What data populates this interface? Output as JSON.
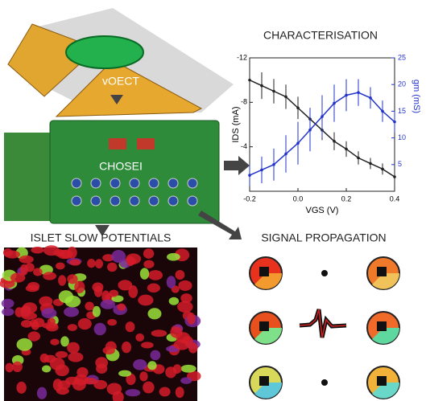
{
  "labels": {
    "device": "vOECT",
    "board": "CHOSEI",
    "islet": "ISLET SLOW POTENTIALS",
    "propagation": "SIGNAL PROPAGATION"
  },
  "chart_data": {
    "type": "line",
    "title": "CHARACTERISATION",
    "x_label": "VGS (V)",
    "y_label": "IDS (mA)",
    "y2_label": "gm (mS)",
    "x": [
      -0.2,
      -0.15,
      -0.1,
      -0.05,
      0.0,
      0.05,
      0.1,
      0.15,
      0.2,
      0.25,
      0.3,
      0.35,
      0.4
    ],
    "xlim": [
      -0.2,
      0.4
    ],
    "xticks": [
      -0.2,
      {
        "value": 0,
        "label": "0.0"
      },
      0.2,
      0.4
    ],
    "ylim": [
      0,
      -12
    ],
    "yticks": [
      -12,
      -8,
      -4
    ],
    "y2lim": [
      0,
      25
    ],
    "y2ticks": [
      5,
      10,
      15,
      20,
      25
    ],
    "series": [
      {
        "color": "#222222",
        "axis": "y",
        "values": [
          -10,
          -9.5,
          -9,
          -8.5,
          -7.5,
          -6.5,
          -5.5,
          -4.5,
          -3.8,
          -3,
          -2.5,
          -2,
          -1.3
        ],
        "errors": [
          1.2,
          1.2,
          1.1,
          1.1,
          1,
          1,
          0.9,
          0.8,
          0.7,
          0.6,
          0.5,
          0.5,
          0.4
        ]
      },
      {
        "color": "#2233cc",
        "axis": "y2",
        "values": [
          3,
          4,
          5,
          7,
          9,
          11.5,
          14,
          16.5,
          18,
          18.5,
          17.5,
          15,
          13
        ],
        "errors": [
          2,
          2.5,
          3,
          3.5,
          4,
          4,
          4,
          3.5,
          3,
          2.5,
          2,
          2,
          2
        ]
      }
    ]
  }
}
